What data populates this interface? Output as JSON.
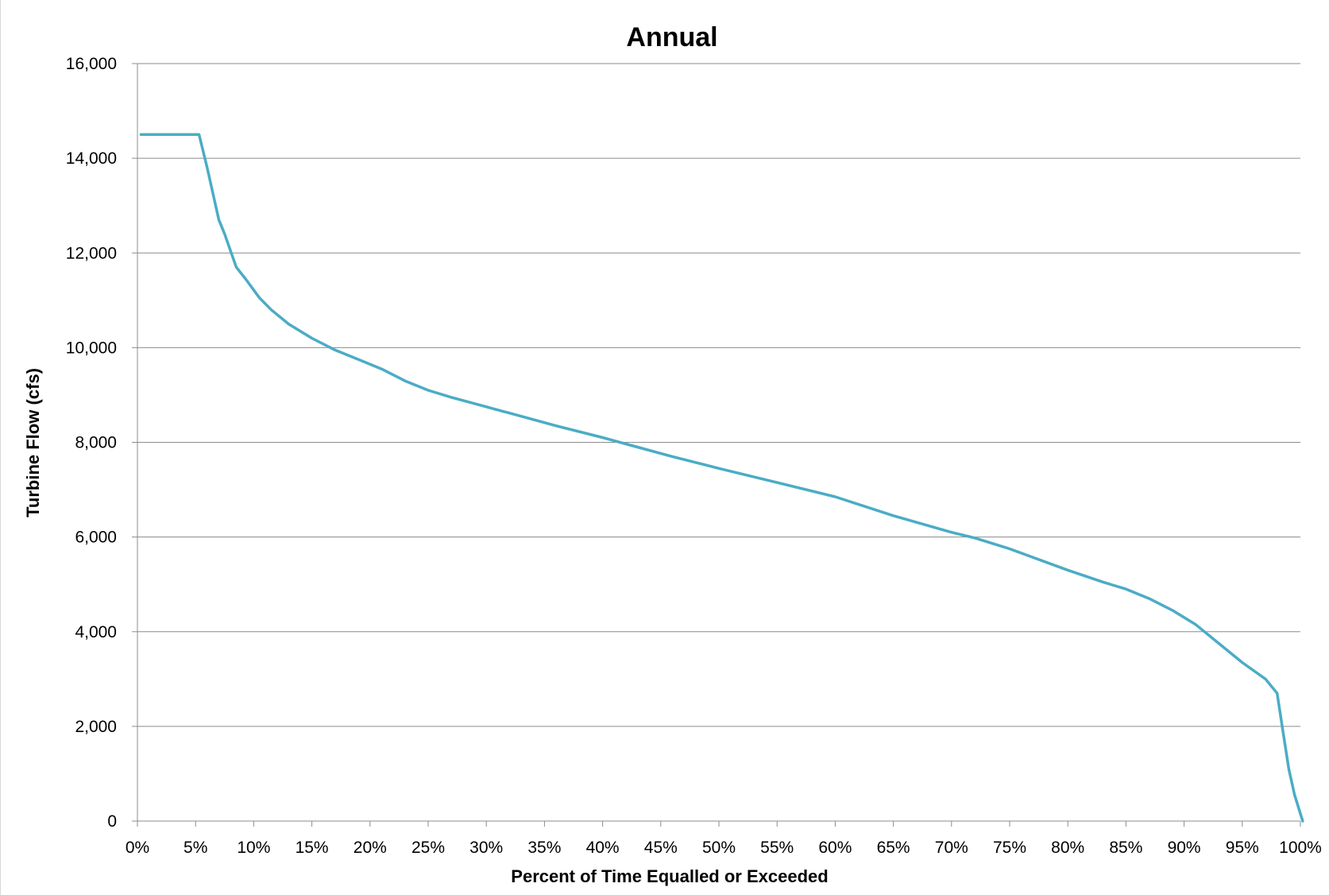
{
  "chart_data": {
    "type": "line",
    "title": "Annual",
    "xlabel": "Percent of Time Equalled or Exceeded",
    "ylabel": "Turbine Flow (cfs)",
    "xlim": [
      0,
      100
    ],
    "ylim": [
      0,
      16000
    ],
    "x_ticks": [
      "0%",
      "5%",
      "10%",
      "15%",
      "20%",
      "25%",
      "30%",
      "35%",
      "40%",
      "45%",
      "50%",
      "55%",
      "60%",
      "65%",
      "70%",
      "75%",
      "80%",
      "85%",
      "90%",
      "95%",
      "100%"
    ],
    "x_tick_values": [
      0,
      5,
      10,
      15,
      20,
      25,
      30,
      35,
      40,
      45,
      50,
      55,
      60,
      65,
      70,
      75,
      80,
      85,
      90,
      95,
      100
    ],
    "y_ticks": [
      "0",
      "2,000",
      "4,000",
      "6,000",
      "8,000",
      "10,000",
      "12,000",
      "14,000",
      "16,000"
    ],
    "y_tick_values": [
      0,
      2000,
      4000,
      6000,
      8000,
      10000,
      12000,
      14000,
      16000
    ],
    "grid": "horizontal",
    "legend": "none",
    "line_color": "#4bacc6",
    "series": [
      {
        "x": [
          0.3,
          5.3,
          6.0,
          7.0,
          7.5,
          8.5,
          9.3,
          10.5,
          11.5,
          13.0,
          15.0,
          17.0,
          19.0,
          21.0,
          23.0,
          25.0,
          27.0,
          30.0,
          33.0,
          36.0,
          40.0,
          43.0,
          46.0,
          50.0,
          55.0,
          60.0,
          65.0,
          70.0,
          72.0,
          75.0,
          80.0,
          83.0,
          85.0,
          87.0,
          89.0,
          91.0,
          93.0,
          95.0,
          97.0,
          98.0,
          98.5,
          99.0,
          99.5,
          100.2
        ],
        "y": [
          14500,
          14500,
          13800,
          12700,
          12400,
          11700,
          11450,
          11050,
          10800,
          10500,
          10200,
          9950,
          9750,
          9550,
          9300,
          9100,
          8950,
          8750,
          8550,
          8350,
          8100,
          7900,
          7700,
          7450,
          7150,
          6850,
          6450,
          6100,
          5980,
          5750,
          5300,
          5050,
          4900,
          4700,
          4450,
          4150,
          3750,
          3350,
          3000,
          2700,
          1900,
          1100,
          550,
          0
        ]
      }
    ]
  }
}
